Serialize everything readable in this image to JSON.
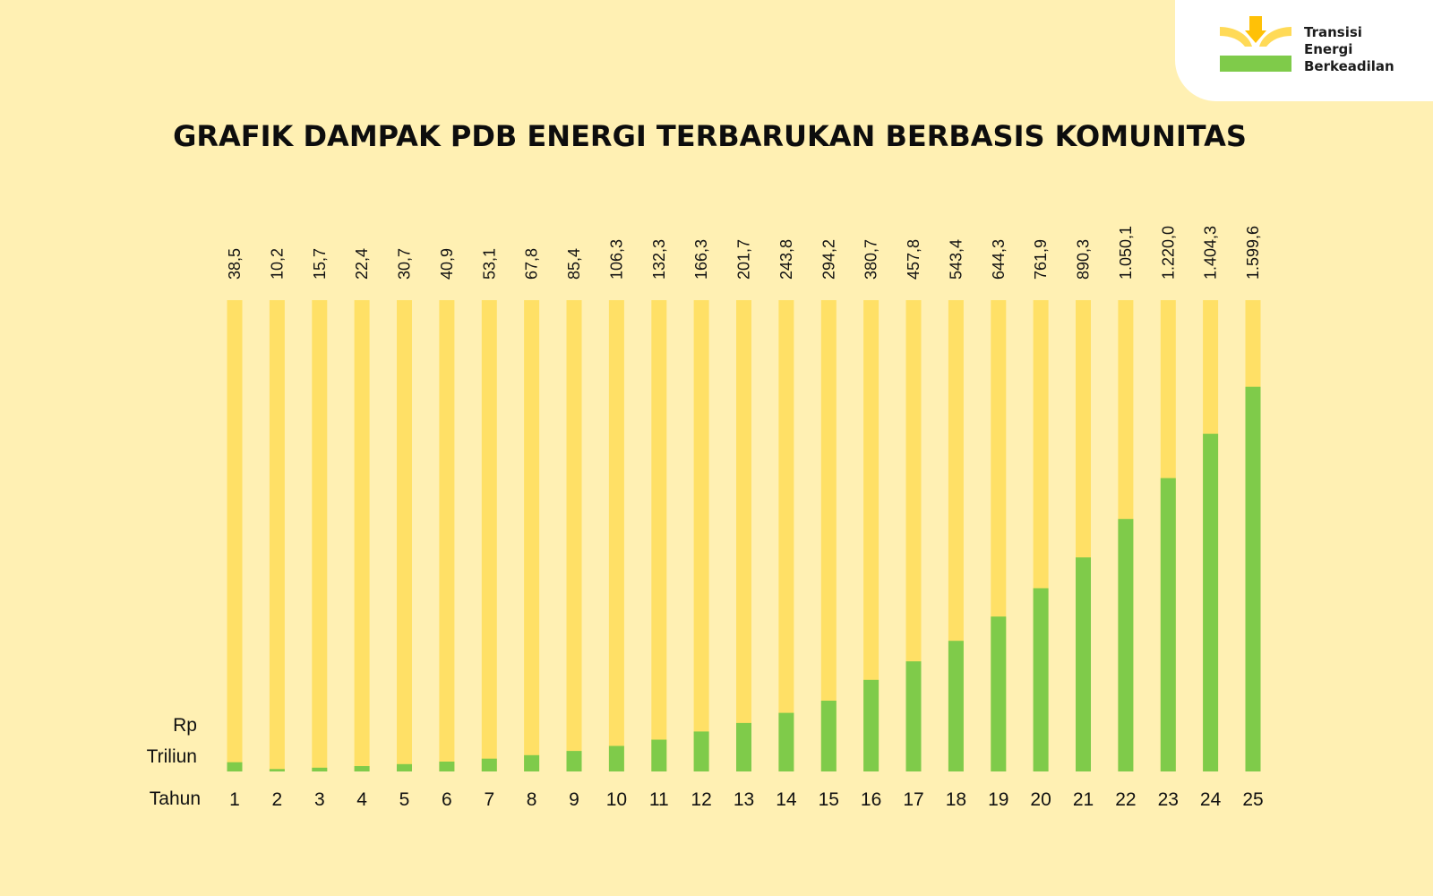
{
  "brand": {
    "name_lines": [
      "Transisi",
      "Energi",
      "Berkeadilan"
    ],
    "colors": {
      "sun": "#FFC107",
      "sun_light": "#FFDA57",
      "ground": "#7FCB4A"
    }
  },
  "colors": {
    "background": "#FFF0B3",
    "track": "#FFE066",
    "bar": "#7FCB4A"
  },
  "chart_data": {
    "type": "bar",
    "title": "GRAFIK DAMPAK PDB ENERGI TERBARUKAN BERBASIS KOMUNITAS",
    "ylabel_lines": [
      "Rp",
      "Triliun"
    ],
    "xlabel": "Tahun",
    "categories": [
      "1",
      "2",
      "3",
      "4",
      "5",
      "6",
      "7",
      "8",
      "9",
      "10",
      "11",
      "12",
      "13",
      "14",
      "15",
      "16",
      "17",
      "18",
      "19",
      "20",
      "21",
      "22",
      "23",
      "24",
      "25"
    ],
    "values": [
      38.5,
      10.2,
      15.7,
      22.4,
      30.7,
      40.9,
      53.1,
      67.8,
      85.4,
      106.3,
      132.3,
      166.3,
      201.7,
      243.8,
      294.2,
      380.7,
      457.8,
      543.4,
      644.3,
      761.9,
      890.3,
      1050.1,
      1220.0,
      1404.3,
      1599.6
    ],
    "value_labels": [
      "38,5",
      "10,2",
      "15,7",
      "22,4",
      "30,7",
      "40,9",
      "53,1",
      "67,8",
      "85,4",
      "106,3",
      "132,3",
      "166,3",
      "201,7",
      "243,8",
      "294,2",
      "380,7",
      "457,8",
      "543,4",
      "644,3",
      "761,9",
      "890,3",
      "1.050,1",
      "1.220,0",
      "1.404,3",
      "1.599,6"
    ],
    "ylim": [
      0,
      1960
    ],
    "grid": false,
    "legend": "none"
  }
}
